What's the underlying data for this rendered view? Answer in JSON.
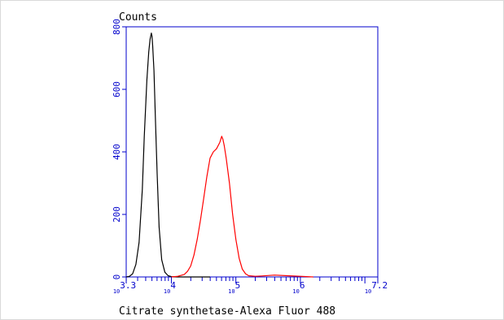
{
  "chart_data": {
    "type": "line",
    "title": "",
    "ylabel": "Counts",
    "xlabel": "Citrate synthetase-Alexa Fluor 488",
    "x_scale": "log10",
    "xlim_log10": [
      3.3,
      7.2
    ],
    "ylim": [
      0,
      800
    ],
    "y_ticks": [
      0,
      200,
      400,
      600,
      800
    ],
    "x_tick_labels": [
      {
        "base": "10",
        "exp": "3.3",
        "log10": 3.3
      },
      {
        "base": "10",
        "exp": "4",
        "log10": 4
      },
      {
        "base": "10",
        "exp": "5",
        "log10": 5
      },
      {
        "base": "10",
        "exp": "6",
        "log10": 6
      },
      {
        "base": "10",
        "exp": "7.2",
        "log10": 7.2
      }
    ],
    "grid": false,
    "legend": "none",
    "series": [
      {
        "color": "#000000",
        "x_log10": [
          3.3,
          3.35,
          3.4,
          3.45,
          3.5,
          3.55,
          3.58,
          3.62,
          3.65,
          3.67,
          3.69,
          3.7,
          3.71,
          3.73,
          3.75,
          3.78,
          3.81,
          3.85,
          3.9,
          3.95,
          4.0,
          4.1,
          4.3,
          4.6
        ],
        "y": [
          0,
          2,
          10,
          40,
          110,
          280,
          450,
          630,
          720,
          760,
          780,
          770,
          740,
          660,
          520,
          330,
          160,
          55,
          15,
          4,
          1,
          0,
          0,
          0
        ]
      },
      {
        "color": "#ff0000",
        "x_log10": [
          4.0,
          4.1,
          4.2,
          4.25,
          4.3,
          4.35,
          4.4,
          4.45,
          4.5,
          4.55,
          4.6,
          4.65,
          4.7,
          4.75,
          4.78,
          4.8,
          4.82,
          4.85,
          4.9,
          4.95,
          5.0,
          5.05,
          5.1,
          5.15,
          5.2,
          5.3,
          5.4,
          5.6,
          5.8,
          6.0,
          6.2
        ],
        "y": [
          0,
          2,
          8,
          18,
          35,
          70,
          120,
          180,
          250,
          320,
          380,
          400,
          410,
          430,
          450,
          440,
          420,
          380,
          300,
          200,
          120,
          60,
          25,
          10,
          4,
          2,
          3,
          6,
          4,
          2,
          0
        ]
      }
    ]
  }
}
